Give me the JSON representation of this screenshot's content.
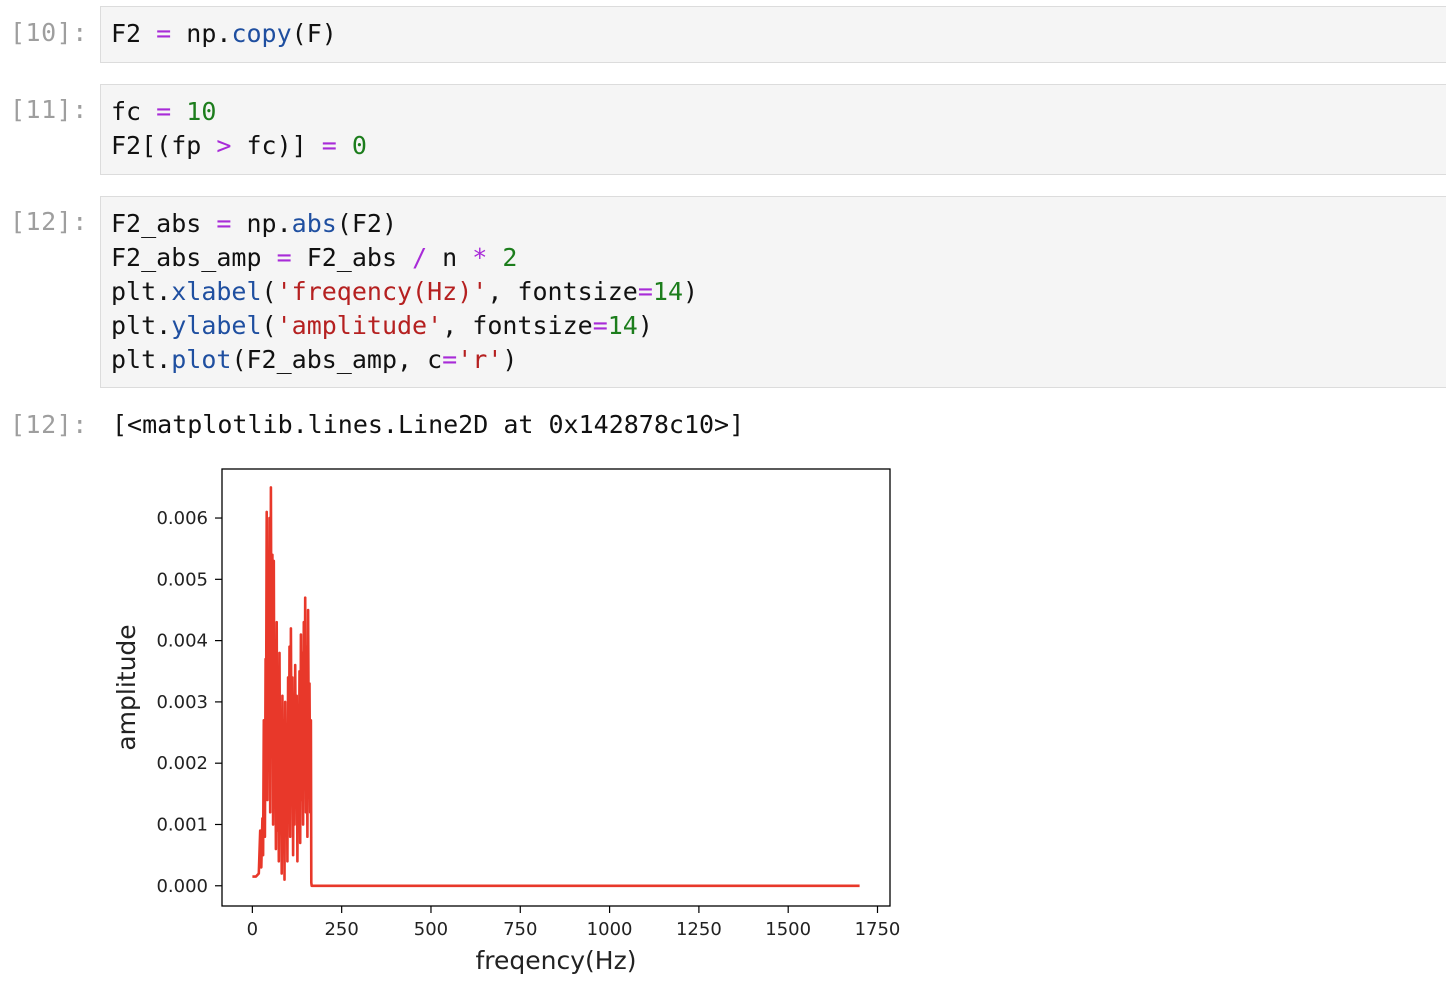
{
  "cells": [
    {
      "prompt": "[10]:",
      "lines": [
        [
          {
            "t": "F2 ",
            "c": ""
          },
          {
            "t": "=",
            "c": "o"
          },
          {
            "t": " np.",
            "c": ""
          },
          {
            "t": "copy",
            "c": "k"
          },
          {
            "t": "(F)",
            "c": ""
          }
        ]
      ]
    },
    {
      "prompt": "[11]:",
      "lines": [
        [
          {
            "t": "fc ",
            "c": ""
          },
          {
            "t": "=",
            "c": "o"
          },
          {
            "t": " ",
            "c": ""
          },
          {
            "t": "10",
            "c": "n"
          }
        ],
        [
          {
            "t": "F2[(fp ",
            "c": ""
          },
          {
            "t": ">",
            "c": "o"
          },
          {
            "t": " fc)] ",
            "c": ""
          },
          {
            "t": "=",
            "c": "o"
          },
          {
            "t": " ",
            "c": ""
          },
          {
            "t": "0",
            "c": "n"
          }
        ]
      ]
    },
    {
      "prompt": "[12]:",
      "lines": [
        [
          {
            "t": "F2_abs ",
            "c": ""
          },
          {
            "t": "=",
            "c": "o"
          },
          {
            "t": " np.",
            "c": ""
          },
          {
            "t": "abs",
            "c": "k"
          },
          {
            "t": "(F2)",
            "c": ""
          }
        ],
        [
          {
            "t": "F2_abs_amp ",
            "c": ""
          },
          {
            "t": "=",
            "c": "o"
          },
          {
            "t": " F2_abs ",
            "c": ""
          },
          {
            "t": "/",
            "c": "o"
          },
          {
            "t": " n ",
            "c": ""
          },
          {
            "t": "*",
            "c": "o"
          },
          {
            "t": " ",
            "c": ""
          },
          {
            "t": "2",
            "c": "n"
          }
        ],
        [
          {
            "t": "plt.",
            "c": ""
          },
          {
            "t": "xlabel",
            "c": "k"
          },
          {
            "t": "(",
            "c": ""
          },
          {
            "t": "'freqency(Hz)'",
            "c": "s"
          },
          {
            "t": ", fontsize",
            "c": ""
          },
          {
            "t": "=",
            "c": "o"
          },
          {
            "t": "14",
            "c": "n"
          },
          {
            "t": ")",
            "c": ""
          }
        ],
        [
          {
            "t": "plt.",
            "c": ""
          },
          {
            "t": "ylabel",
            "c": "k"
          },
          {
            "t": "(",
            "c": ""
          },
          {
            "t": "'amplitude'",
            "c": "s"
          },
          {
            "t": ", fontsize",
            "c": ""
          },
          {
            "t": "=",
            "c": "o"
          },
          {
            "t": "14",
            "c": "n"
          },
          {
            "t": ")",
            "c": ""
          }
        ],
        [
          {
            "t": "plt.",
            "c": ""
          },
          {
            "t": "plot",
            "c": "k"
          },
          {
            "t": "(F2_abs_amp, c",
            "c": ""
          },
          {
            "t": "=",
            "c": "o"
          },
          {
            "t": "'r'",
            "c": "s"
          },
          {
            "t": ")",
            "c": ""
          }
        ]
      ]
    }
  ],
  "output": {
    "prompt": "[12]:",
    "text": "[<matplotlib.lines.Line2D at 0x142878c10>]"
  },
  "chart_data": {
    "type": "line",
    "xlabel": "freqency(Hz)",
    "ylabel": "amplitude",
    "xlim": [
      -85,
      1785
    ],
    "ylim": [
      -0.00033,
      0.0068
    ],
    "xticks": [
      0,
      250,
      500,
      750,
      1000,
      1250,
      1500,
      1750
    ],
    "xtick_labels": [
      "0",
      "250",
      "500",
      "750",
      "1000",
      "1250",
      "1500",
      "1750"
    ],
    "yticks": [
      0.0,
      0.001,
      0.002,
      0.003,
      0.004,
      0.005,
      0.006
    ],
    "ytick_labels": [
      "0.000",
      "0.001",
      "0.002",
      "0.003",
      "0.004",
      "0.005",
      "0.006"
    ],
    "line_color": "#e8382a",
    "series": [
      {
        "x": [
          0,
          10,
          18,
          22,
          25,
          28,
          30,
          32,
          35,
          37,
          38,
          40,
          42,
          44,
          46,
          48,
          50,
          52,
          54,
          56,
          58,
          60,
          62,
          64,
          66,
          68,
          70,
          72,
          74,
          76,
          78,
          80,
          82,
          84,
          86,
          88,
          90,
          92,
          94,
          96,
          98,
          100,
          102,
          104,
          106,
          108,
          110,
          112,
          114,
          116,
          118,
          120,
          122,
          124,
          126,
          128,
          130,
          132,
          134,
          136,
          138,
          140,
          142,
          144,
          146,
          148,
          150,
          152,
          154,
          156,
          158,
          160,
          162,
          164,
          165,
          166,
          168,
          175,
          200,
          300,
          400,
          500,
          600,
          700,
          800,
          900,
          1000,
          1100,
          1200,
          1300,
          1400,
          1500,
          1600,
          1700
        ],
        "y": [
          0.00015,
          0.00015,
          0.0002,
          0.0009,
          0.0003,
          0.0011,
          0.0005,
          0.0027,
          0.0008,
          0.0037,
          0.0017,
          0.0061,
          0.0014,
          0.0048,
          0.0022,
          0.006,
          0.0012,
          0.0065,
          0.0021,
          0.0054,
          0.001,
          0.0053,
          0.0014,
          0.0036,
          0.0006,
          0.0043,
          0.0009,
          0.0031,
          0.0004,
          0.0038,
          0.0011,
          0.0028,
          0.0002,
          0.0031,
          0.0007,
          0.0027,
          0.0001,
          0.003,
          0.0009,
          0.0026,
          0.0004,
          0.0034,
          0.0012,
          0.0039,
          0.0008,
          0.0042,
          0.0015,
          0.0034,
          0.0005,
          0.003,
          0.001,
          0.0036,
          0.0016,
          0.0031,
          0.0004,
          0.0027,
          0.0011,
          0.0035,
          0.0007,
          0.0041,
          0.0014,
          0.0038,
          0.001,
          0.0043,
          0.0017,
          0.0047,
          0.0012,
          0.0039,
          0.0008,
          0.0045,
          0.0021,
          0.0033,
          0.0012,
          0.0027,
          5e-05,
          0.0,
          0.0,
          0.0,
          0.0,
          0.0,
          0.0,
          0.0,
          0.0,
          0.0,
          0.0,
          0.0,
          0.0,
          0.0,
          0.0,
          0.0,
          0.0,
          0.0,
          0.0,
          0.0
        ]
      }
    ],
    "grid": false
  }
}
